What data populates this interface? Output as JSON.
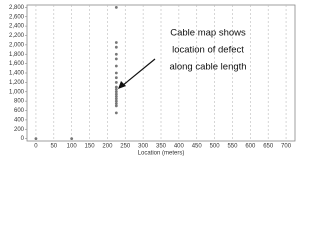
{
  "chart_data": {
    "type": "scatter",
    "x_label": "Location (meters)",
    "annotation": [
      "Cable map shows",
      "location of defect",
      "along cable length"
    ],
    "series": [
      {
        "color": "#777777",
        "x": [
          0,
          100,
          225,
          225,
          225,
          225,
          225,
          225,
          225,
          225,
          225,
          225,
          225,
          225,
          225,
          225,
          225,
          225,
          225,
          225,
          225
        ],
        "values": [
          0,
          0,
          2800,
          2050,
          1950,
          1800,
          1700,
          1550,
          1400,
          1300,
          1200,
          1100,
          1050,
          1000,
          950,
          900,
          850,
          800,
          750,
          700,
          550
        ]
      }
    ],
    "xlim": [
      -25,
      725
    ],
    "ylim": [
      -50,
      2850
    ],
    "xticks": [
      0,
      50,
      100,
      150,
      200,
      250,
      300,
      350,
      400,
      450,
      500,
      550,
      600,
      650,
      700
    ],
    "yticks": [
      0,
      200,
      400,
      600,
      800,
      {
        "value": 1000,
        "label": "1,000"
      },
      {
        "value": 1200,
        "label": "1,200"
      },
      {
        "value": 1400,
        "label": "1,400"
      },
      {
        "value": 1600,
        "label": "1,600"
      },
      {
        "value": 1800,
        "label": "1,800"
      },
      {
        "value": 2000,
        "label": "2,000"
      },
      {
        "value": 2200,
        "label": "2,200"
      },
      {
        "value": 2400,
        "label": "2,400"
      },
      {
        "value": 2600,
        "label": "2,600"
      },
      {
        "value": 2800,
        "label": "2,800"
      }
    ],
    "grid": true
  }
}
